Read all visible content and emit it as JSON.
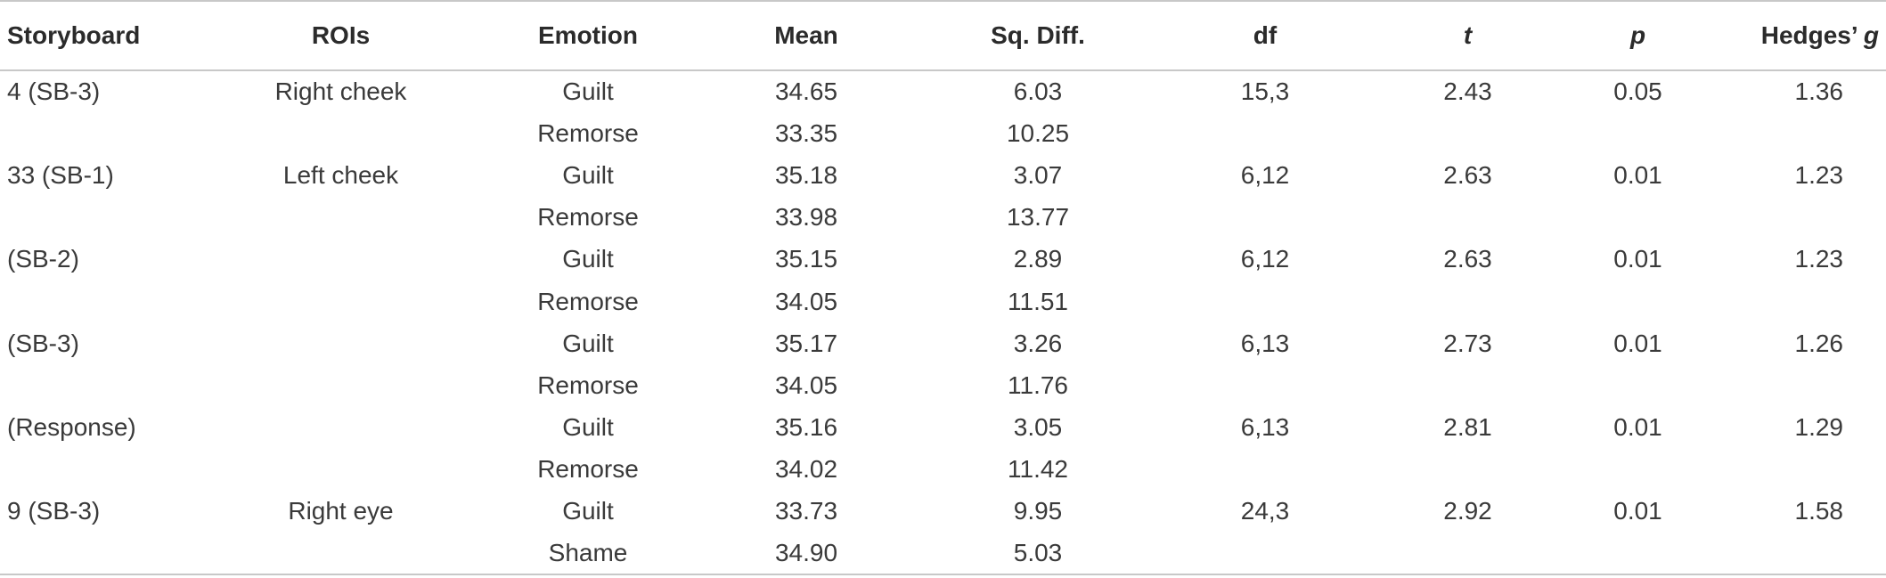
{
  "table": {
    "headers": {
      "storyboard": "Storyboard",
      "rois": "ROIs",
      "emotion": "Emotion",
      "mean": "Mean",
      "sq_diff": "Sq. Diff.",
      "df": "df",
      "t": "t",
      "p": "p",
      "hedges_prefix": "Hedges’",
      "hedges_g": "g"
    },
    "rows": [
      {
        "storyboard": "4 (SB-3)",
        "roi": "Right cheek",
        "emotion": "Guilt",
        "mean": "34.65",
        "sq_diff": "6.03",
        "df": "15,3",
        "t": "2.43",
        "p": "0.05",
        "g": "1.36"
      },
      {
        "storyboard": "",
        "roi": "",
        "emotion": "Remorse",
        "mean": "33.35",
        "sq_diff": "10.25",
        "df": "",
        "t": "",
        "p": "",
        "g": ""
      },
      {
        "storyboard": "33 (SB-1)",
        "roi": "Left cheek",
        "emotion": "Guilt",
        "mean": "35.18",
        "sq_diff": "3.07",
        "df": "6,12",
        "t": "2.63",
        "p": "0.01",
        "g": "1.23"
      },
      {
        "storyboard": "",
        "roi": "",
        "emotion": "Remorse",
        "mean": "33.98",
        "sq_diff": "13.77",
        "df": "",
        "t": "",
        "p": "",
        "g": ""
      },
      {
        "storyboard": "(SB-2)",
        "roi": "",
        "emotion": "Guilt",
        "mean": "35.15",
        "sq_diff": "2.89",
        "df": "6,12",
        "t": "2.63",
        "p": "0.01",
        "g": "1.23"
      },
      {
        "storyboard": "",
        "roi": "",
        "emotion": "Remorse",
        "mean": "34.05",
        "sq_diff": "11.51",
        "df": "",
        "t": "",
        "p": "",
        "g": ""
      },
      {
        "storyboard": "(SB-3)",
        "roi": "",
        "emotion": "Guilt",
        "mean": "35.17",
        "sq_diff": "3.26",
        "df": "6,13",
        "t": "2.73",
        "p": "0.01",
        "g": "1.26"
      },
      {
        "storyboard": "",
        "roi": "",
        "emotion": "Remorse",
        "mean": "34.05",
        "sq_diff": "11.76",
        "df": "",
        "t": "",
        "p": "",
        "g": ""
      },
      {
        "storyboard": "(Response)",
        "roi": "",
        "emotion": "Guilt",
        "mean": "35.16",
        "sq_diff": "3.05",
        "df": "6,13",
        "t": "2.81",
        "p": "0.01",
        "g": "1.29"
      },
      {
        "storyboard": "",
        "roi": "",
        "emotion": "Remorse",
        "mean": "34.02",
        "sq_diff": "11.42",
        "df": "",
        "t": "",
        "p": "",
        "g": ""
      },
      {
        "storyboard": "9 (SB-3)",
        "roi": "Right eye",
        "emotion": "Guilt",
        "mean": "33.73",
        "sq_diff": "9.95",
        "df": "24,3",
        "t": "2.92",
        "p": "0.01",
        "g": "1.58"
      },
      {
        "storyboard": "",
        "roi": "",
        "emotion": "Shame",
        "mean": "34.90",
        "sq_diff": "5.03",
        "df": "",
        "t": "",
        "p": "",
        "g": ""
      }
    ]
  }
}
